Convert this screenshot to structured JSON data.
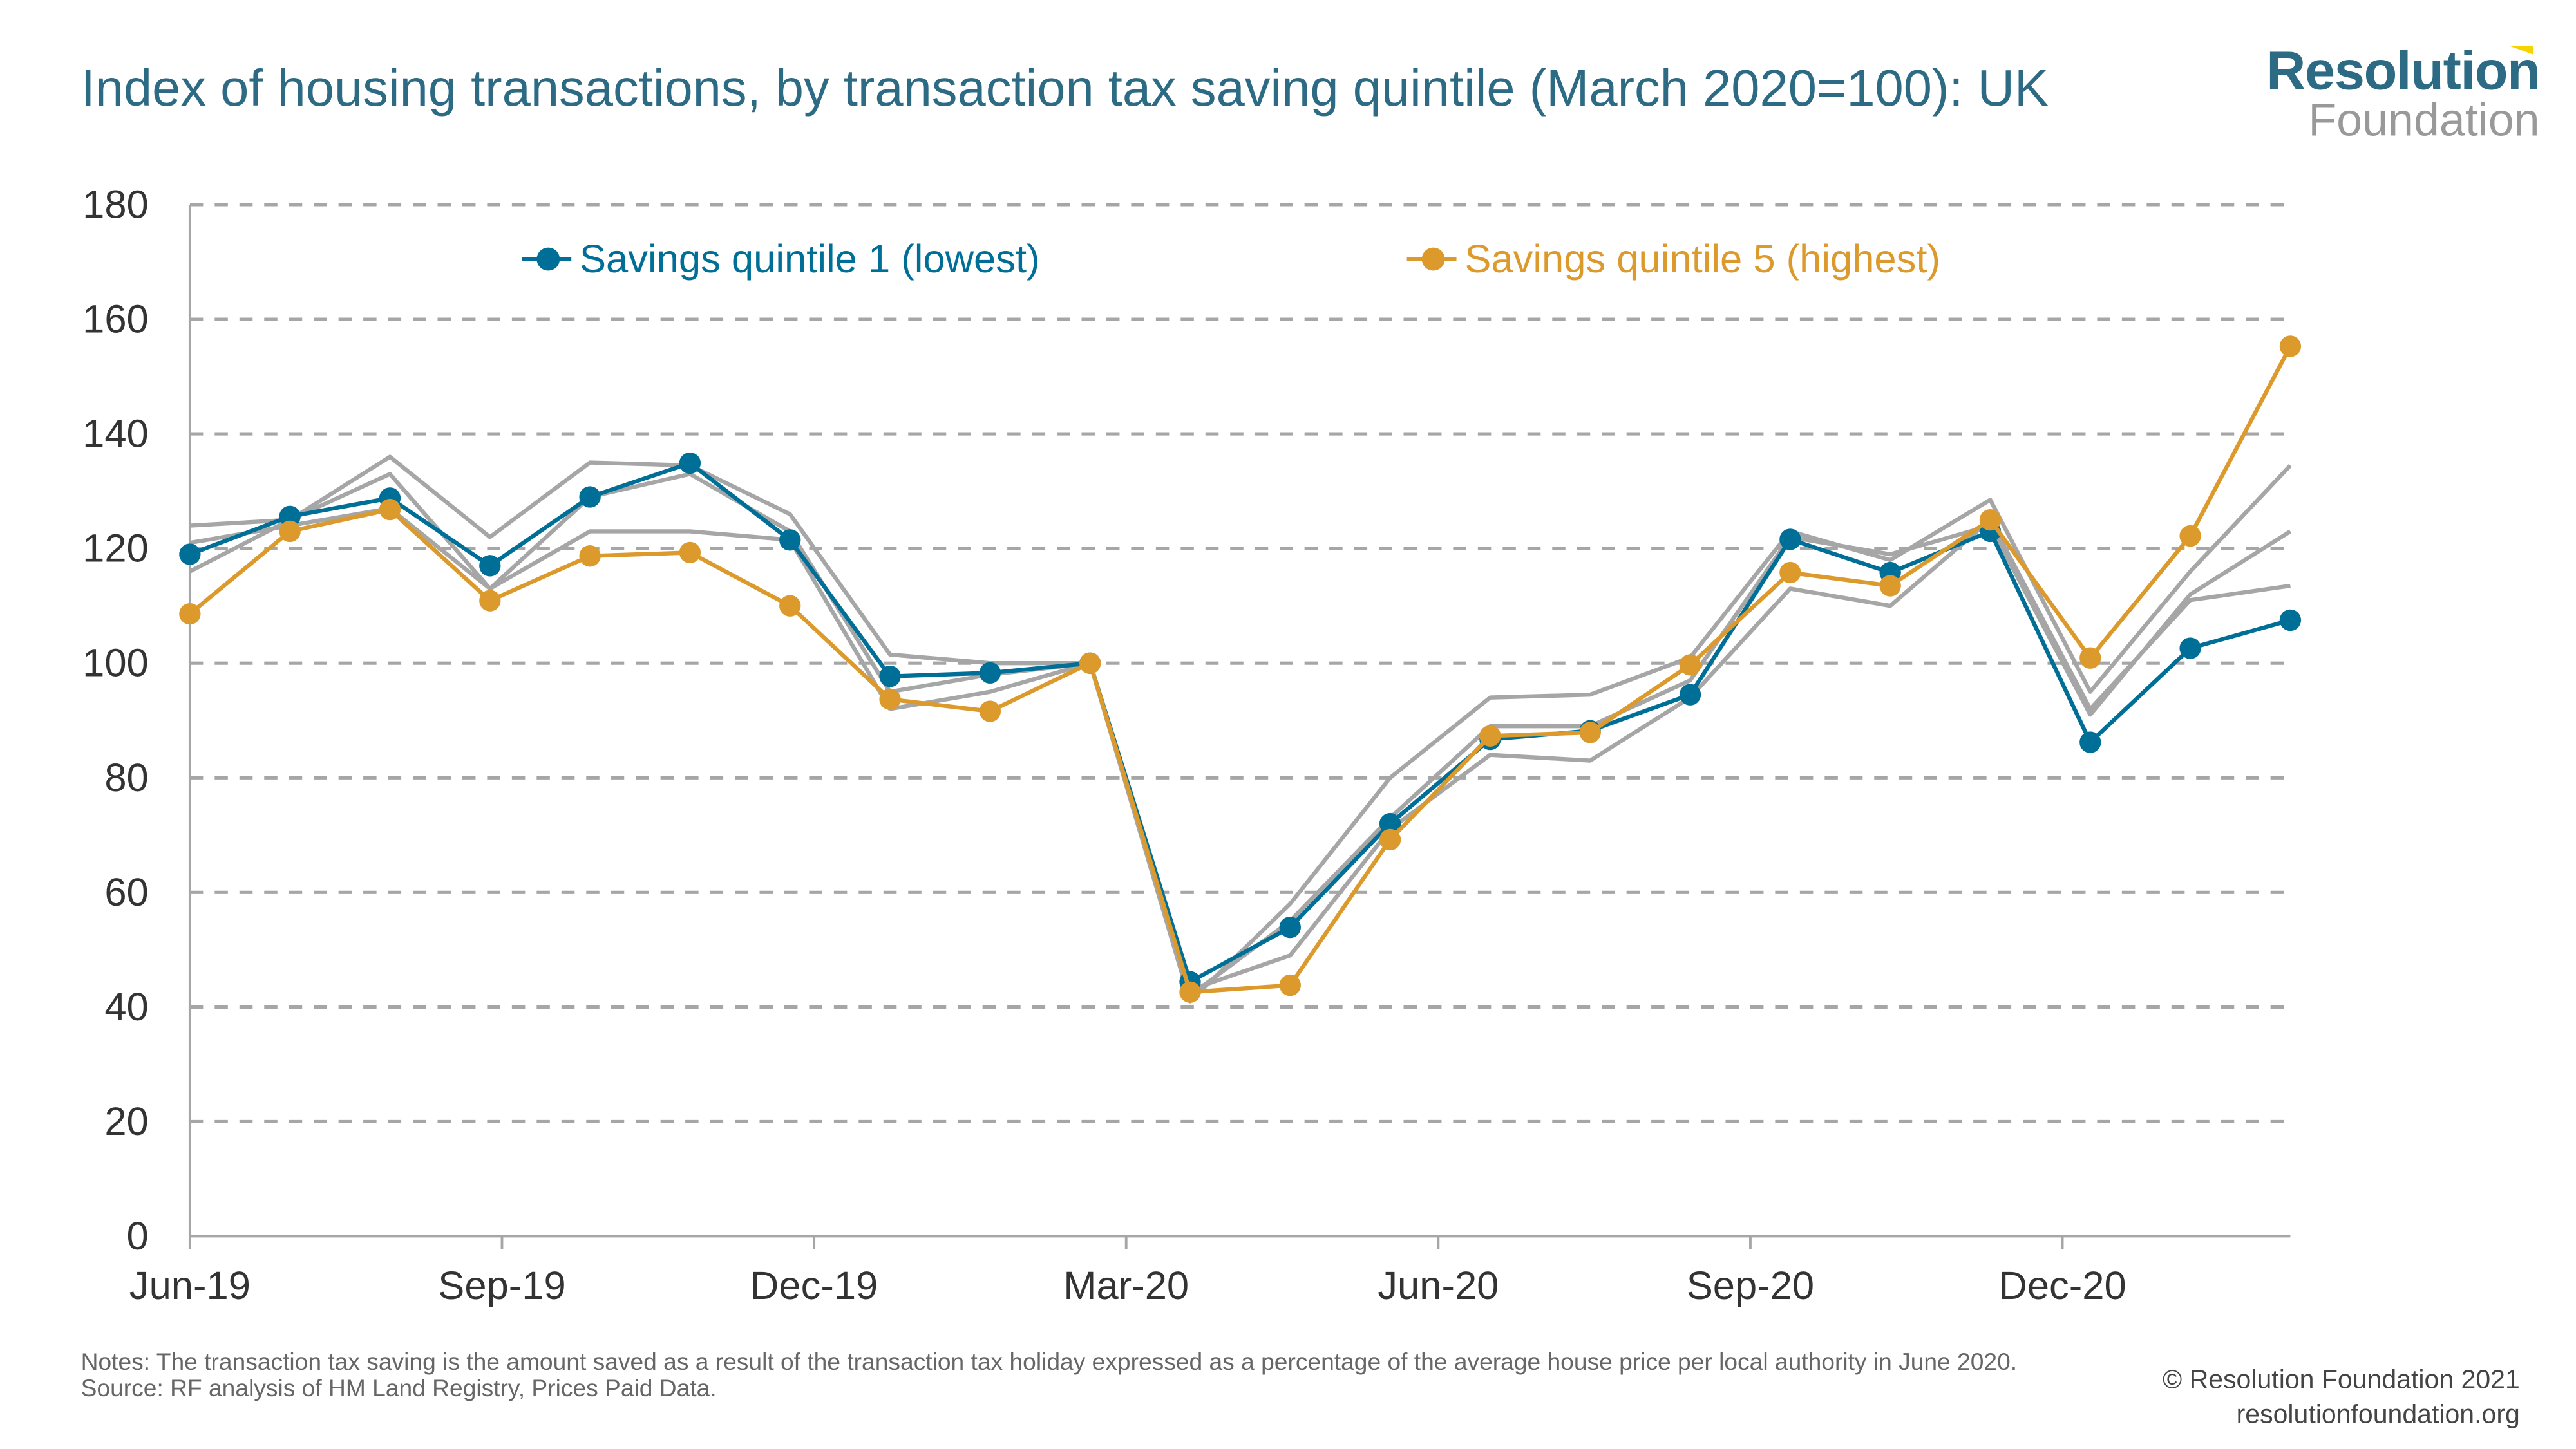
{
  "header": {
    "title": "Index of housing transactions, by transaction tax saving quintile (March 2020=100): UK"
  },
  "logo": {
    "line1": "Resolution",
    "line2": "Foundation",
    "colors": {
      "primary": "#2d6b84",
      "secondary": "#999999",
      "accent": "#f5d400"
    }
  },
  "footer": {
    "notes": "Notes: The transaction tax saving is the amount saved as a result of the transaction tax holiday expressed as a percentage of the average house price per local authority in June 2020.",
    "source": "Source: RF analysis of HM Land Registry, Prices Paid Data.",
    "copyright": "© Resolution Foundation 2021",
    "url": "resolutionfoundation.org"
  },
  "chart_data": {
    "type": "line",
    "title": "Index of housing transactions, by transaction tax saving quintile (March 2020=100): UK",
    "x": [
      "Jun-19",
      "Jul-19",
      "Aug-19",
      "Sep-19",
      "Oct-19",
      "Nov-19",
      "Dec-19",
      "Jan-20",
      "Feb-20",
      "Mar-20",
      "Apr-20",
      "May-20",
      "Jun-20",
      "Jul-20",
      "Aug-20",
      "Sep-20",
      "Oct-20",
      "Nov-20",
      "Dec-20",
      "Jan-21",
      "Feb-21",
      "Mar-21"
    ],
    "xtick_labels": [
      "Jun-19",
      "Sep-19",
      "Dec-19",
      "Mar-20",
      "Jun-20",
      "Sep-20",
      "Dec-20"
    ],
    "xtick_index": [
      0,
      3,
      6,
      9,
      12,
      15,
      18
    ],
    "ylim": [
      0,
      180
    ],
    "yticks": [
      0,
      20,
      40,
      60,
      80,
      100,
      120,
      140,
      160,
      180
    ],
    "grid": "horizontal dashed",
    "legend_position": "top",
    "series": [
      {
        "name": "",
        "color": "#a6a6a6",
        "markers": false,
        "values": [
          124,
          125,
          136,
          122,
          135,
          134.5,
          126,
          101.5,
          100,
          100,
          41,
          58,
          80,
          94,
          94.5,
          101,
          123,
          118,
          128.5,
          95,
          116,
          134.5
        ]
      },
      {
        "name": "",
        "color": "#a6a6a6",
        "markers": false,
        "values": [
          116,
          125,
          133,
          113,
          123,
          123,
          121.5,
          92,
          95,
          100,
          43,
          49,
          71,
          84,
          83,
          94,
          113,
          110,
          125,
          92,
          111,
          113.5
        ]
      },
      {
        "name": "",
        "color": "#a6a6a6",
        "markers": false,
        "values": [
          121,
          124,
          127,
          113,
          129,
          133,
          123,
          95,
          98,
          100,
          42,
          55,
          73,
          89,
          89,
          97,
          122,
          119,
          124,
          91,
          112,
          123
        ]
      },
      {
        "name": "Savings quintile 1 (lowest)",
        "color": "#006f98",
        "markers": true,
        "values": [
          119,
          125.6,
          128.8,
          117,
          129,
          134.9,
          121.5,
          97.7,
          98.3,
          100,
          44.4,
          53.9,
          72,
          86.7,
          88.2,
          94.5,
          121.6,
          115.8,
          123,
          86.2,
          102.6,
          107.5
        ]
      },
      {
        "name": "Savings quintile 5 (highest)",
        "color": "#dc9a2c",
        "markers": true,
        "values": [
          108.6,
          123,
          126.8,
          110.9,
          118.7,
          119.3,
          110,
          93.7,
          91.6,
          100,
          42.6,
          43.8,
          69.2,
          87.3,
          87.9,
          99.7,
          115.8,
          113.5,
          125,
          100.9,
          122.2,
          155.3
        ]
      }
    ]
  }
}
